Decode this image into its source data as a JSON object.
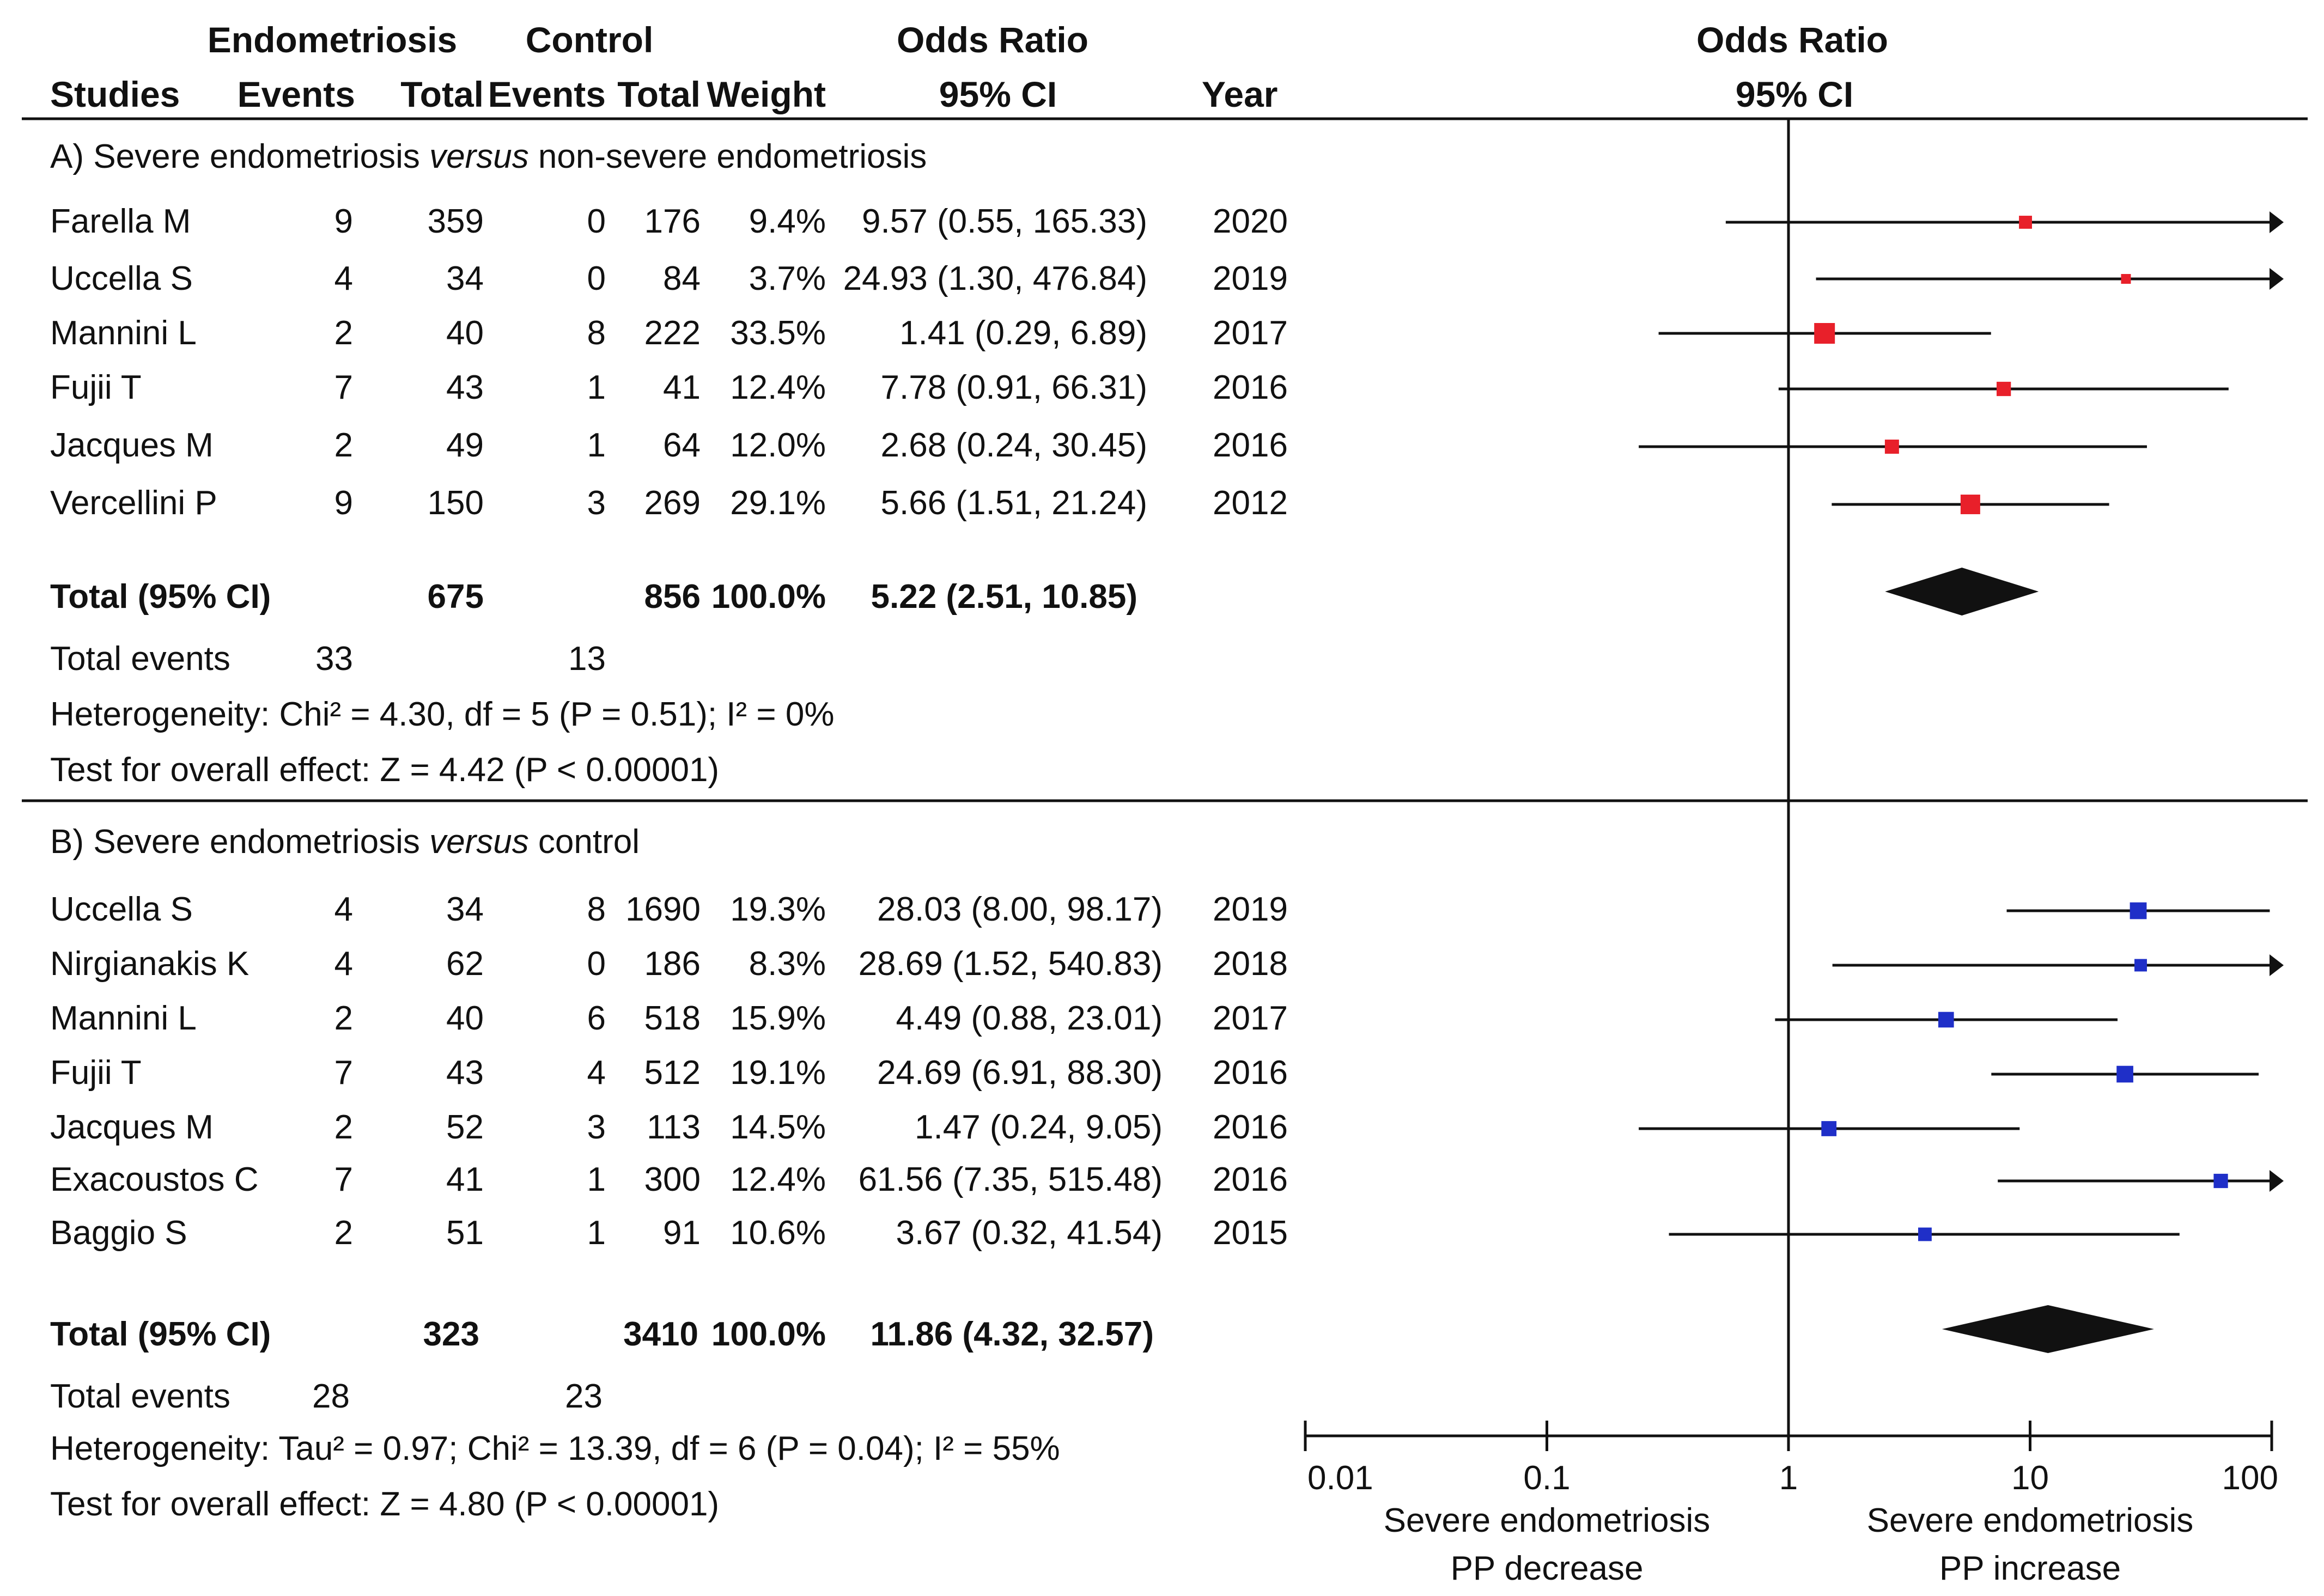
{
  "chart_data": {
    "type": "forest",
    "x_scale": "log",
    "xlim": [
      0.01,
      100
    ],
    "ticks": [
      "0.01",
      "0.1",
      "1",
      "10",
      "100"
    ],
    "header": {
      "group1": "Endometriosis",
      "group2": "Control",
      "effect": "Odds Ratio",
      "plot_title": "Odds Ratio",
      "studies": "Studies",
      "events": "Events",
      "total": "Total",
      "weight": "Weight",
      "ci": "95% CI",
      "year": "Year",
      "plot_ci": "95% CI"
    },
    "left_label": [
      "Severe endometriosis",
      "PP decrease"
    ],
    "right_label": [
      "Severe endometriosis",
      "PP increase"
    ],
    "subgroups": [
      {
        "title_pre": "A) Severe endometriosis ",
        "title_em": "versus",
        "title_post": " non-severe endometriosis",
        "marker_color": "#e8202a",
        "studies": [
          {
            "name": "Farella M",
            "e1": "9",
            "n1": "359",
            "e2": "0",
            "n2": "176",
            "weight": "9.4%",
            "ci_text": "9.57 (0.55, 165.33)",
            "year": "2020",
            "or": 9.57,
            "lo": 0.55,
            "hi": 165.33,
            "w": 9.4
          },
          {
            "name": "Uccella S",
            "e1": "4",
            "n1": "34",
            "e2": "0",
            "n2": "84",
            "weight": "3.7%",
            "ci_text": "24.93 (1.30, 476.84)",
            "year": "2019",
            "or": 24.93,
            "lo": 1.3,
            "hi": 476.84,
            "w": 3.7
          },
          {
            "name": "Mannini L",
            "e1": "2",
            "n1": "40",
            "e2": "8",
            "n2": "222",
            "weight": "33.5%",
            "ci_text": "1.41 (0.29, 6.89)",
            "year": "2017",
            "or": 1.41,
            "lo": 0.29,
            "hi": 6.89,
            "w": 33.5
          },
          {
            "name": "Fujii T",
            "e1": "7",
            "n1": "43",
            "e2": "1",
            "n2": "41",
            "weight": "12.4%",
            "ci_text": "7.78 (0.91, 66.31)",
            "year": "2016",
            "or": 7.78,
            "lo": 0.91,
            "hi": 66.31,
            "w": 12.4
          },
          {
            "name": "Jacques M",
            "e1": "2",
            "n1": "49",
            "e2": "1",
            "n2": "64",
            "weight": "12.0%",
            "ci_text": "2.68 (0.24, 30.45)",
            "year": "2016",
            "or": 2.68,
            "lo": 0.24,
            "hi": 30.45,
            "w": 12.0
          },
          {
            "name": "Vercellini P",
            "e1": "9",
            "n1": "150",
            "e2": "3",
            "n2": "269",
            "weight": "29.1%",
            "ci_text": "5.66 (1.51, 21.24)",
            "year": "2012",
            "or": 5.66,
            "lo": 1.51,
            "hi": 21.24,
            "w": 29.1
          }
        ],
        "total": {
          "label": "Total (95% CI)",
          "n1": "675",
          "n2": "856",
          "weight": "100.0%",
          "ci_text": "5.22 (2.51, 10.85)",
          "or": 5.22,
          "lo": 2.51,
          "hi": 10.85
        },
        "events": {
          "label": "Total events",
          "e1": "33",
          "e2": "13"
        },
        "heterogeneity": "Heterogeneity: Chi² = 4.30, df = 5 (P = 0.51); I² = 0%",
        "overall": "Test for overall effect: Z = 4.42 (P < 0.00001)"
      },
      {
        "title_pre": "B) Severe endometriosis ",
        "title_em": "versus",
        "title_post": " control",
        "marker_color": "#1f2fc8",
        "studies": [
          {
            "name": "Uccella S",
            "e1": "4",
            "n1": "34",
            "e2": "8",
            "n2": "1690",
            "weight": "19.3%",
            "ci_text": "28.03 (8.00, 98.17)",
            "year": "2019",
            "or": 28.03,
            "lo": 8.0,
            "hi": 98.17,
            "w": 19.3
          },
          {
            "name": "Nirgianakis K",
            "e1": "4",
            "n1": "62",
            "e2": "0",
            "n2": "186",
            "weight": "8.3%",
            "ci_text": "28.69 (1.52, 540.83)",
            "year": "2018",
            "or": 28.69,
            "lo": 1.52,
            "hi": 540.83,
            "w": 8.3
          },
          {
            "name": "Mannini L",
            "e1": "2",
            "n1": "40",
            "e2": "6",
            "n2": "518",
            "weight": "15.9%",
            "ci_text": "4.49 (0.88, 23.01)",
            "year": "2017",
            "or": 4.49,
            "lo": 0.88,
            "hi": 23.01,
            "w": 15.9
          },
          {
            "name": "Fujii T",
            "e1": "7",
            "n1": "43",
            "e2": "4",
            "n2": "512",
            "weight": "19.1%",
            "ci_text": "24.69 (6.91, 88.30)",
            "year": "2016",
            "or": 24.69,
            "lo": 6.91,
            "hi": 88.3,
            "w": 19.1
          },
          {
            "name": "Jacques M",
            "e1": "2",
            "n1": "52",
            "e2": "3",
            "n2": "113",
            "weight": "14.5%",
            "ci_text": "1.47 (0.24, 9.05)",
            "year": "2016",
            "or": 1.47,
            "lo": 0.24,
            "hi": 9.05,
            "w": 14.5
          },
          {
            "name": "Exacoustos C",
            "e1": "7",
            "n1": "41",
            "e2": "1",
            "n2": "300",
            "weight": "12.4%",
            "ci_text": "61.56 (7.35, 515.48)",
            "year": "2016",
            "or": 61.56,
            "lo": 7.35,
            "hi": 515.48,
            "w": 12.4
          },
          {
            "name": "Baggio S",
            "e1": "2",
            "n1": "51",
            "e2": "1",
            "n2": "91",
            "weight": "10.6%",
            "ci_text": "3.67 (0.32, 41.54)",
            "year": "2015",
            "or": 3.67,
            "lo": 0.32,
            "hi": 41.54,
            "w": 10.6
          }
        ],
        "total": {
          "label": "Total (95% CI)",
          "n1": "323",
          "n2": "3410",
          "weight": "100.0%",
          "ci_text": "11.86 (4.32, 32.57)",
          "or": 11.86,
          "lo": 4.32,
          "hi": 32.57
        },
        "events": {
          "label": "Total events",
          "e1": "28",
          "e2": "23"
        },
        "heterogeneity": "Heterogeneity: Tau² = 0.97; Chi² = 13.39, df = 6 (P = 0.04); I² = 55%",
        "overall": "Test for overall effect: Z = 4.80 (P < 0.00001)"
      }
    ]
  }
}
